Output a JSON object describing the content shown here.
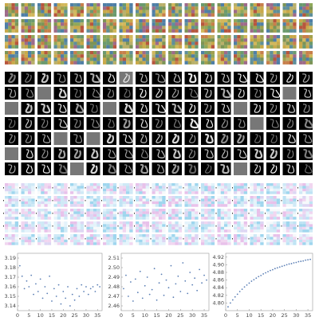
{
  "chart_data": [
    {
      "type": "scatter",
      "color": "#5b7fb5",
      "x": [
        1,
        2,
        3,
        4,
        5,
        6,
        7,
        8,
        9,
        10,
        11,
        12,
        13,
        14,
        15,
        16,
        17,
        18,
        19,
        20,
        21,
        22,
        23,
        24,
        25,
        26,
        27,
        28,
        29,
        30,
        31,
        32,
        33,
        34,
        35,
        36
      ],
      "values": [
        3.182,
        3.171,
        3.158,
        3.166,
        3.16,
        3.172,
        3.152,
        3.163,
        3.155,
        3.168,
        3.148,
        3.16,
        3.153,
        3.171,
        3.145,
        3.158,
        3.15,
        3.162,
        3.142,
        3.155,
        3.148,
        3.16,
        3.14,
        3.152,
        3.146,
        3.158,
        3.15,
        3.162,
        3.155,
        3.16,
        3.152,
        3.158,
        3.16,
        3.155,
        3.162,
        3.16
      ],
      "xlim": [
        0,
        37
      ],
      "xticks": [
        0,
        5,
        10,
        15,
        20,
        25,
        30,
        35
      ],
      "ylim": [
        3.135,
        3.195
      ],
      "yticks": [
        3.14,
        3.15,
        3.16,
        3.17,
        3.18,
        3.19
      ]
    },
    {
      "type": "scatter",
      "color": "#5b7fb5",
      "x": [
        1,
        2,
        3,
        4,
        5,
        6,
        7,
        8,
        9,
        10,
        11,
        12,
        13,
        14,
        15,
        16,
        17,
        18,
        19,
        20,
        21,
        22,
        23,
        24,
        25,
        26,
        27,
        28,
        29,
        30,
        31,
        32,
        33,
        34,
        35,
        36
      ],
      "values": [
        2.478,
        2.492,
        2.47,
        2.485,
        2.465,
        2.488,
        2.474,
        2.496,
        2.468,
        2.481,
        2.49,
        2.472,
        2.477,
        2.499,
        2.466,
        2.484,
        2.493,
        2.471,
        2.487,
        2.479,
        2.502,
        2.469,
        2.483,
        2.491,
        2.475,
        2.505,
        2.486,
        2.473,
        2.495,
        2.482,
        2.489,
        2.476,
        2.498,
        2.484,
        2.492,
        2.487
      ],
      "xlim": [
        0,
        37
      ],
      "xticks": [
        0,
        5,
        10,
        15,
        20,
        25,
        30,
        35
      ],
      "ylim": [
        2.455,
        2.515
      ],
      "yticks": [
        2.46,
        2.47,
        2.48,
        2.49,
        {
          "value": 2.5,
          "label": "2.50"
        },
        2.51
      ]
    },
    {
      "type": "scatter",
      "color": "#5b7fb5",
      "x": [
        1,
        2,
        3,
        4,
        5,
        6,
        7,
        8,
        9,
        10,
        11,
        12,
        13,
        14,
        15,
        16,
        17,
        18,
        19,
        20,
        21,
        22,
        23,
        24,
        25,
        26,
        27,
        28,
        29,
        30,
        31,
        32,
        33,
        34,
        35,
        36
      ],
      "values": [
        4.79,
        4.8,
        4.808,
        4.816,
        4.823,
        4.83,
        4.836,
        4.842,
        4.847,
        4.852,
        4.857,
        4.861,
        4.865,
        4.869,
        4.872,
        4.876,
        4.879,
        4.882,
        4.885,
        4.887,
        4.89,
        4.892,
        4.894,
        4.896,
        4.898,
        4.9,
        4.902,
        4.903,
        4.905,
        4.906,
        4.908,
        4.909,
        4.91,
        4.912,
        4.913,
        4.914
      ],
      "xlim": [
        0,
        37
      ],
      "xticks": [
        0,
        5,
        10,
        15,
        20,
        25,
        30,
        35
      ],
      "ylim": [
        4.78,
        4.93
      ],
      "yticks": [
        {
          "value": 4.8,
          "label": "4.80"
        },
        4.82,
        4.84,
        4.86,
        4.88,
        {
          "value": 4.9,
          "label": "4.90"
        },
        4.92
      ]
    }
  ]
}
